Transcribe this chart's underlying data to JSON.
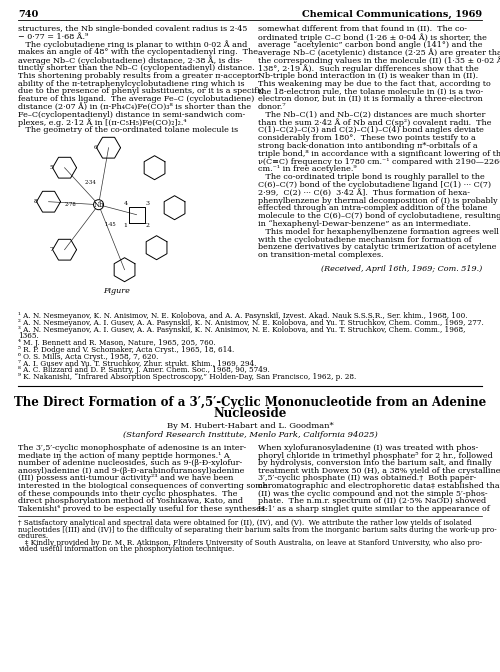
{
  "background_color": "#ffffff",
  "top_left_page_num": "740",
  "top_right_header": "Chemical Communications, 1969",
  "left_col_text": [
    "structures, the Nb single-bonded covalent radius is 2·45",
    "− 0·77 = 1·68 Å.⁹",
    "   The cyclobutadiene ring is planar to within 0·02 Å and",
    "makes an angle of 48° with the cyclopentadienyl ring.  The",
    "average Nb–C (cyclobutadiene) distance, 2·38 Å, is dis-",
    "tinctly shorter than the Nb–C (cyclopentadienyl) distance.",
    "This shortening probably results from a greater π-acceptor",
    "ability of the π-tetraphenylcyclobutadiene ring which is",
    "due to the presence of phenyl substituents, or it is a specific",
    "feature of this ligand.  The average Fe–C (cyclobutadiene)",
    "distance (2·07 Å) in (π-Ph₄C₄)Fe(CO)₃⁸ is shorter than the",
    "Fe–C(cyclopentadienyl) distance in semi-sandwich com-",
    "plexes, e.g. 2·12 Å in [(π-C₅H₅)Fe(CO)₂]₂.⁴",
    "   The geometry of the co-ordinated tolane molecule is"
  ],
  "right_col_text": [
    "somewhat different from that found in (II).  The co-",
    "ordinated triple C–C bond (1·26 ± 0·04 Å) is shorter, the",
    "average “acetylenic” carbon bond angle (141°) and the",
    "average Nb–C (acetylenic) distance (2·25 Å) are greater than",
    "the corresponding values in the molecule (II) (1·35 ± 0·02 Å,",
    "138°, 2·19 Å).  Such regular differences show that the",
    "Nb-triple bond interaction in (I) is weaker than in (II).",
    "This weakening may be due to the fact that, according to",
    "the 18-electron rule, the tolane molecule in (I) is a two-",
    "electron donor, but in (II) it is formally a three-electron",
    "donor.⁷",
    "   The Nb–C(1) and Nb–C(2) distances are much shorter",
    "than the sum 2·42 Å of Nb and C(sp²) covalent radii.  The",
    "C(1)–C(2)–C(3) and C(2)–C(1)–C(4) bond angles deviate",
    "considerably from 180°.  These two points testify to a",
    "strong back-donation into antibonding π*-orbitals of a",
    "triple bond,⁸ in accordance with a significant lowering of the",
    "ν(C≡C) frequency to 1780 cm.⁻¹ compared with 2190—2260",
    "cm.⁻¹ in free acetylene.⁹",
    "   The co-ordinated triple bond is roughly parallel to the",
    "C(6)–C(7) bond of the cyclobutadiene ligand [C(1) ··· C(7)",
    "2·99,  C(2) ··· C(6)  3·42 Å].  Thus formation of hexa-",
    "phenylbenzene by thermal decomposition of (I) is probably",
    "effected through an intra-complex addition of the tolane",
    "molecule to the C(6)–C(7) bond of cyclobutadiene, resulting",
    "in “hexaphenyl-Dewar-benzene” as an intermediate.",
    "   This model for hexaphenylbenzene formation agrees well",
    "with the cyclobutadiene mechanism for formation of",
    "benzene derivatives by catalytic trimerization of acetylene",
    "on transition-metal complexes."
  ],
  "received_text": "(Received, April 16th, 1969; Com. 519.)",
  "figure_caption": "Figure",
  "references": [
    "¹ A. N. Nesmeyanov, K. N. Anisimov, N. E. Kolobova, and A. A. Pasynskiĭ, Izvest. Akad. Nauk S.S.S.R., Ser. khim., 1968, 100.",
    "² A. N. Nesmeyanov, A. I. Gusev, A. A. Pasynskiĭ, K. N. Anisimov, N. E. Kolobova, and Yu. T. Struchkov, Chem. Comm., 1969, 277.",
    "³ A. N. Nesmeyanov, A. I. Gusev, A. A. Pasynskiĭ, K. N. Anisimov, N. E. Kolobova, and Yu. T. Struchkov, Chem. Comm., 1968,",
    "1365.",
    "⁴ M. J. Bennett and R. Mason, Nature, 1965, 205, 760.",
    "⁵ R. P. Dodge and V. Schomaker, Acta Cryst., 1965, 18, 614.",
    "⁶ O. S. Mills, Acta Cryst., 1958, 7, 620.",
    "⁷ A. I. Gusev and Yu. T. Struchkov, Zhur. strukt. Khim., 1969, 294.",
    "⁸ A. C. Blizzard and D. P. Santry, J. Amer. Chem. Soc., 1968, 90, 5749.",
    "⁹ K. Nakanishi, “Infrared Absorption Spectroscopy,” Holden-Day, San Francisco, 1962, p. 28."
  ],
  "article_title_line1": "The Direct Formation of a 3′,5′-Cyclic Mononucleotide from an Adenine",
  "article_title_line2": "Nucleoside",
  "article_byline": "By M. Hubert-Habart and L. Goodman*",
  "article_affiliation": "(Stanford Research Institute, Menlo Park, California 94025)",
  "article_left_text": [
    "The 3′,5′-cyclic monophosphate of adenosine is an inter-",
    "mediate in the action of many peptide hormones.¹ A",
    "number of adenine nucleosides, such as 9-(β-Đ-xylofur-",
    "anosyl)adenine (I) and 9-(β-Đ-arabinofuranosyl)adenine",
    "(III) possess anti-tumour activity²³ and we have been",
    "interested in the biological consequences of converting some",
    "of these compounds into their cyclic phosphates.  The",
    "direct phosphorylation method of Yoshikawa, Kato, and",
    "Takenishi⁴ proved to be especially useful for these syntheses."
  ],
  "article_right_text": [
    "When xylofuranosyladenine (I) was treated with phos-",
    "phoryl chloride in trimethyl phosphate⁵ for 2 hr., followed",
    "by hydrolysis, conversion into the barium salt, and finally",
    "treatment with Dowex 50 (H), a 38% yield of the crystalline",
    "3′,5′-cyclic phosphate (II) was obtained.†  Both paper-",
    "chromatographic and electrophoretic data‡ established that",
    "(II) was the cyclic compound and not the simple 5′-phos-",
    "phate.  The n.m.r. spectrum of (II) (2·5% NaOD) showed",
    "H-1′ as a sharp singlet quite similar to the appearance of"
  ],
  "footnote_line1": "† Satisfactory analytical and spectral data were obtained for (II), (IV), and (V).  We attribute the rather low yields of isolated",
  "footnote_line2": "nucleotides [(III) and (IV)] to the difficulty of separating their barium salts from the inorganic barium salts during the work-up pro-",
  "footnote_line3": "cedures.",
  "footnote_line4": "   ‡ Kindly provided by Dr. M. R. Atkinson, Flinders University of South Australia, on leave at Stanford University, who also pro-",
  "footnote_line5": "vided useful information on the phosphorylation technique."
}
